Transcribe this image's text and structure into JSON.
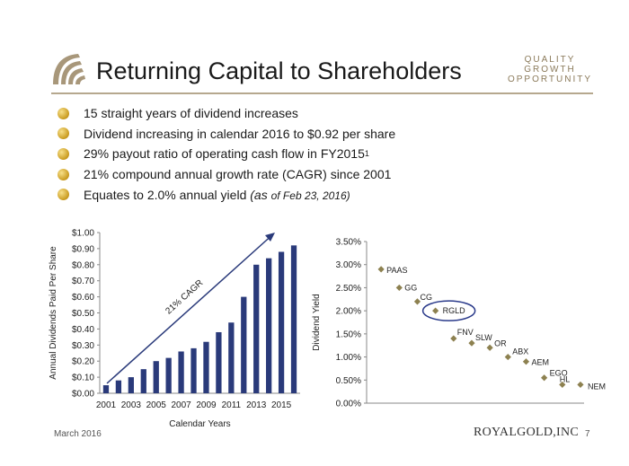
{
  "header": {
    "title": "Returning Capital to Shareholders",
    "tagline": [
      "QUALITY",
      "GROWTH",
      "OPPORTUNITY"
    ]
  },
  "bullets": [
    {
      "text": "15 straight years of dividend increases"
    },
    {
      "text": "Dividend increasing in calendar 2016 to $0.92 per share"
    },
    {
      "text": "29% payout ratio of operating cash flow in FY2015",
      "sup": "1"
    },
    {
      "text": "21% compound annual growth rate (CAGR) since 2001"
    },
    {
      "text": "Equates to 2.0% annual yield ",
      "note_prefix": "(as ",
      "note": "of Feb 23, 2016)"
    }
  ],
  "chart_data": [
    {
      "type": "bar",
      "ylabel": "Annual Dividends Paid Per Share",
      "xlabel": "Calendar Years",
      "ylim": [
        0,
        1.0
      ],
      "yticks": [
        "$0.00",
        "$0.10",
        "$0.20",
        "$0.30",
        "$0.40",
        "$0.50",
        "$0.60",
        "$0.70",
        "$0.80",
        "$0.90",
        "$1.00"
      ],
      "xtick_labels": [
        "2001",
        "2003",
        "2005",
        "2007",
        "2009",
        "2011",
        "2013",
        "2015"
      ],
      "categories": [
        "2001",
        "2002",
        "2003",
        "2004",
        "2005",
        "2006",
        "2007",
        "2008",
        "2009",
        "2010",
        "2011",
        "2012",
        "2013",
        "2014",
        "2015",
        "2016"
      ],
      "values": [
        0.05,
        0.08,
        0.1,
        0.15,
        0.2,
        0.22,
        0.26,
        0.28,
        0.32,
        0.38,
        0.44,
        0.6,
        0.8,
        0.84,
        0.88,
        0.92
      ],
      "bar_color": "#2a3a7a",
      "annotation": "21% CAGR",
      "grid": false
    },
    {
      "type": "scatter",
      "ylabel": "Dividend Yield",
      "ylim": [
        0,
        3.5
      ],
      "yticks": [
        "0.00%",
        "0.50%",
        "1.00%",
        "1.50%",
        "2.00%",
        "2.50%",
        "3.00%",
        "3.50%"
      ],
      "points": [
        {
          "label": "PAAS",
          "value": 2.9
        },
        {
          "label": "GG",
          "value": 2.5
        },
        {
          "label": "CG",
          "value": 2.2
        },
        {
          "label": "RGLD",
          "value": 2.0,
          "highlight": true
        },
        {
          "label": "FNV",
          "value": 1.4
        },
        {
          "label": "SLW",
          "value": 1.3
        },
        {
          "label": "OR",
          "value": 1.2
        },
        {
          "label": "ABX",
          "value": 1.0
        },
        {
          "label": "AEM",
          "value": 0.9
        },
        {
          "label": "EGO",
          "value": 0.55
        },
        {
          "label": "HL",
          "value": 0.4
        },
        {
          "label": "NEM",
          "value": 0.4
        }
      ],
      "marker_color": "#8d8150",
      "highlight_color": "#2a3a8a",
      "grid": false
    }
  ],
  "footer": {
    "date": "March 2016",
    "brand": "ROYALGOLD,INC",
    "page": "7"
  }
}
